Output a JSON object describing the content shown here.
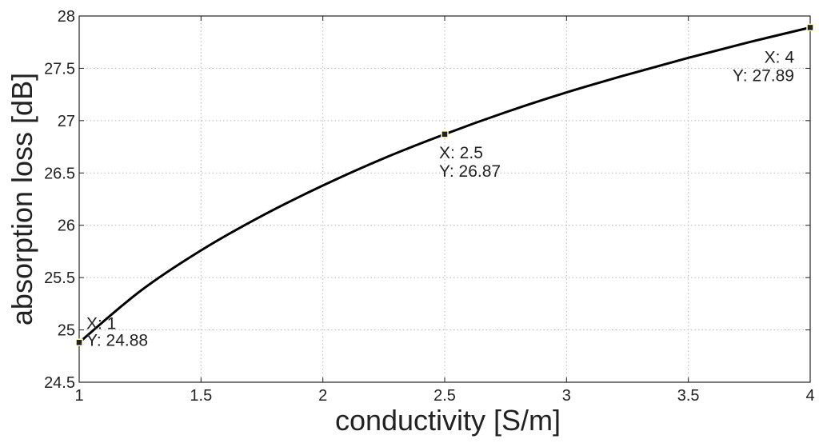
{
  "chart_data": {
    "type": "line",
    "title": "",
    "xlabel": "conductivity [S/m]",
    "ylabel": "absorption loss [dB]",
    "xlim": [
      1,
      4
    ],
    "ylim": [
      24.5,
      28
    ],
    "xticks": [
      "1",
      "1.5",
      "2",
      "2.5",
      "3",
      "3.5",
      "4"
    ],
    "yticks": [
      "24.5",
      "25",
      "25.5",
      "26",
      "26.5",
      "27",
      "27.5",
      "28"
    ],
    "grid": true,
    "legend": "none",
    "line_color": "#000000",
    "series": [
      {
        "x": [
          1.0,
          1.25,
          1.5,
          1.75,
          2.0,
          2.25,
          2.5,
          2.75,
          3.0,
          3.25,
          3.5,
          3.75,
          4.0
        ],
        "y": [
          24.88,
          25.37,
          25.76,
          26.09,
          26.38,
          26.64,
          26.87,
          27.08,
          27.27,
          27.44,
          27.6,
          27.75,
          27.89
        ]
      }
    ],
    "annotations": [
      {
        "x": 1,
        "y": 24.88,
        "x_text": "X: 1",
        "y_text": "Y: 24.88"
      },
      {
        "x": 2.5,
        "y": 26.87,
        "x_text": "X: 2.5",
        "y_text": "Y: 26.87"
      },
      {
        "x": 4,
        "y": 27.89,
        "x_text": "X: 4",
        "y_text": "Y: 27.89"
      }
    ]
  }
}
